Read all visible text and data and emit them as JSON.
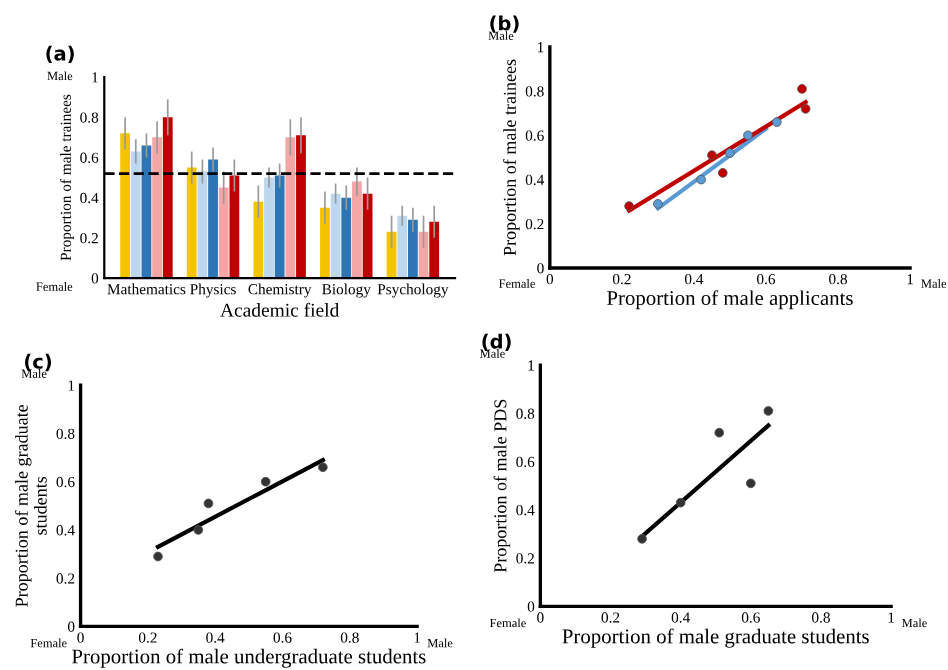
{
  "chart_data": [
    {
      "type": "bar",
      "title": "(a)",
      "xlabel": "Academic field",
      "ylabel": "Proportion of male trainees",
      "categories": [
        "Mathematics",
        "Physics",
        "Chemistry",
        "Biology",
        "Psychology"
      ],
      "series": [
        {
          "color": "#f5c400",
          "values": [
            0.72,
            0.55,
            0.38,
            0.35,
            0.23
          ],
          "errors": [
            0.08,
            0.08,
            0.08,
            0.08,
            0.08
          ]
        },
        {
          "color": "#bdd7ee",
          "values": [
            0.63,
            0.53,
            0.5,
            0.42,
            0.31
          ],
          "errors": [
            0.06,
            0.06,
            0.05,
            0.05,
            0.05
          ]
        },
        {
          "color": "#2e75b6",
          "values": [
            0.66,
            0.59,
            0.51,
            0.4,
            0.29
          ],
          "errors": [
            0.06,
            0.06,
            0.06,
            0.06,
            0.06
          ]
        },
        {
          "color": "#f4a6a6",
          "values": [
            0.7,
            0.45,
            0.7,
            0.48,
            0.23
          ],
          "errors": [
            0.08,
            0.08,
            0.09,
            0.07,
            0.08
          ]
        },
        {
          "color": "#c00000",
          "values": [
            0.8,
            0.51,
            0.71,
            0.42,
            0.28
          ],
          "errors": [
            0.09,
            0.08,
            0.09,
            0.08,
            0.08
          ]
        }
      ],
      "ylim": [
        0,
        1
      ],
      "yticks": [
        0,
        0.2,
        0.4,
        0.6,
        0.8,
        1
      ],
      "ref_lines": [
        {
          "axis": "y",
          "value": 0.52,
          "line_style": "dashed",
          "color": "#000000"
        }
      ],
      "annotations": [
        "Male",
        "Female"
      ],
      "grid": false,
      "legend": false
    },
    {
      "type": "scatter",
      "title": "(b)",
      "xlabel": "Proportion of male applicants",
      "ylabel": "Proportion of male trainees",
      "series": [
        {
          "type": "scatter",
          "color": "#5b9bd5",
          "x": [
            0.3,
            0.42,
            0.5,
            0.55,
            0.63
          ],
          "values": [
            0.29,
            0.4,
            0.52,
            0.6,
            0.66
          ]
        },
        {
          "type": "scatter",
          "color": "#c00000",
          "x": [
            0.22,
            0.45,
            0.48,
            0.7,
            0.71
          ],
          "values": [
            0.28,
            0.51,
            0.43,
            0.81,
            0.72
          ]
        },
        {
          "type": "line",
          "color": "#5b9bd5",
          "x": [
            0.3,
            0.6
          ],
          "values": [
            0.27,
            0.63
          ]
        },
        {
          "type": "line",
          "color": "#c00000",
          "x": [
            0.22,
            0.71
          ],
          "values": [
            0.26,
            0.75
          ]
        }
      ],
      "xlim": [
        0,
        1
      ],
      "xticks": [
        0,
        0.2,
        0.4,
        0.6,
        0.8,
        1
      ],
      "ylim": [
        0,
        1
      ],
      "yticks": [
        0,
        0.2,
        0.4,
        0.6,
        0.8,
        1
      ],
      "annotations": [
        "Male",
        "Female",
        "Male"
      ],
      "grid": false,
      "legend": false
    },
    {
      "type": "scatter",
      "title": "(c)",
      "xlabel": "Proportion of male undergraduate students",
      "ylabel": "Proportion of male graduate\nstudents",
      "series": [
        {
          "type": "scatter",
          "color": "#333333",
          "x": [
            0.23,
            0.35,
            0.38,
            0.55,
            0.72
          ],
          "values": [
            0.29,
            0.4,
            0.51,
            0.6,
            0.66
          ]
        },
        {
          "type": "line",
          "color": "#000000",
          "x": [
            0.23,
            0.72
          ],
          "values": [
            0.33,
            0.69
          ]
        }
      ],
      "xlim": [
        0,
        1
      ],
      "xticks": [
        0,
        0.2,
        0.4,
        0.6,
        0.8,
        1
      ],
      "ylim": [
        0,
        1
      ],
      "yticks": [
        0,
        0.2,
        0.4,
        0.6,
        0.8,
        1
      ],
      "annotations": [
        "Male",
        "Female",
        "Male"
      ],
      "grid": false,
      "legend": false
    },
    {
      "type": "scatter",
      "title": "(d)",
      "xlabel": "Proportion of male graduate students",
      "ylabel": "Proportion of male PDS",
      "series": [
        {
          "type": "scatter",
          "color": "#333333",
          "x": [
            0.29,
            0.4,
            0.51,
            0.6,
            0.65
          ],
          "values": [
            0.28,
            0.43,
            0.72,
            0.51,
            0.81
          ]
        },
        {
          "type": "line",
          "color": "#000000",
          "x": [
            0.29,
            0.65
          ],
          "values": [
            0.29,
            0.75
          ]
        }
      ],
      "xlim": [
        0,
        1
      ],
      "xticks": [
        0,
        0.2,
        0.4,
        0.6,
        0.8,
        1
      ],
      "ylim": [
        0,
        1
      ],
      "yticks": [
        0,
        0.2,
        0.4,
        0.6,
        0.8,
        1
      ],
      "annotations": [
        "Male",
        "Female",
        "Male"
      ],
      "grid": false,
      "legend": false
    }
  ]
}
